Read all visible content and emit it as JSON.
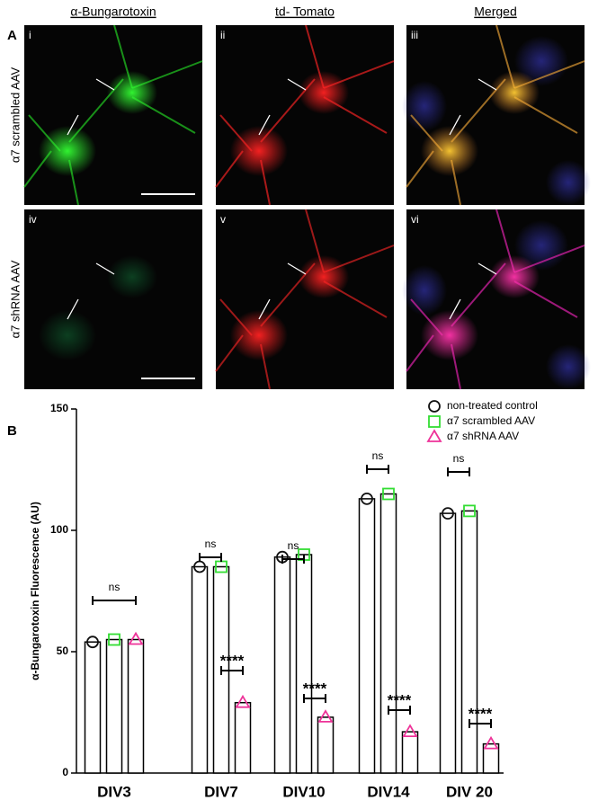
{
  "figure": {
    "panel_a": "A",
    "panel_b": "B",
    "columns": [
      "α-Bungarotoxin",
      "td- Tomato",
      "Merged"
    ],
    "rows": [
      "α7  scrambled AAV",
      "α7  shRNA AAV"
    ],
    "numerals": [
      "i",
      "ii",
      "iii",
      "iv",
      "v",
      "vi"
    ]
  },
  "chart_data": {
    "type": "bar",
    "y_label": "α-Bungarotoxin Fluorescence (AU)",
    "categories": [
      "DIV3",
      "DIV7",
      "DIV10",
      "DIV14",
      "DIV 20"
    ],
    "series": [
      {
        "name": "non-treated control",
        "color": "#111111",
        "marker": "circle",
        "values": [
          54,
          85,
          89,
          113,
          107
        ]
      },
      {
        "name": "α7 scrambled AAV",
        "color": "#33dd33",
        "marker": "square",
        "values": [
          55,
          85,
          90,
          115,
          108
        ]
      },
      {
        "name": "α7 shRNA AAV",
        "color": "#ee3399",
        "marker": "triangle",
        "values": [
          55,
          29,
          23,
          17,
          12
        ]
      }
    ],
    "ylim": [
      0,
      150
    ],
    "yticks": [
      0,
      50,
      100,
      150
    ],
    "annotations": [
      "ns",
      "ns",
      "****",
      "ns",
      "****",
      "ns",
      "****",
      "ns",
      "****"
    ]
  }
}
